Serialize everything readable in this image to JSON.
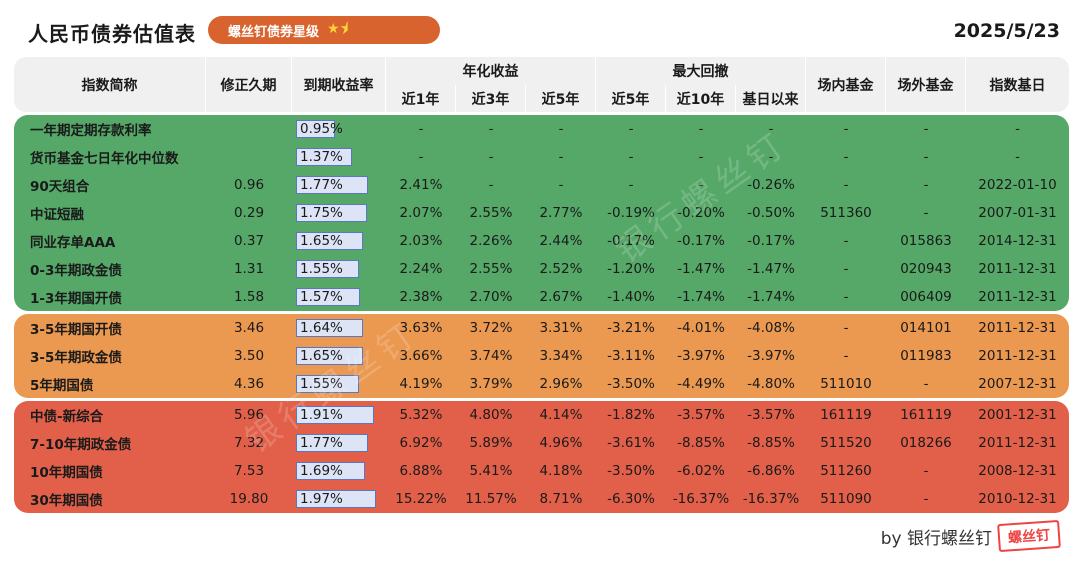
{
  "title": "人民币债券估值表",
  "badge": {
    "text": "螺丝钉债券星级",
    "stars": "★⯨"
  },
  "date": "2025/5/23",
  "headers": {
    "name": "指数简称",
    "duration": "修正久期",
    "ytm": "到期收益率",
    "annual_group": "年化收益",
    "annual": [
      "近1年",
      "近3年",
      "近5年"
    ],
    "drawdown_group": "最大回撤",
    "drawdown": [
      "近5年",
      "近10年",
      "基日以来"
    ],
    "onsite": "场内基金",
    "offsite": "场外基金",
    "base_date": "指数基日"
  },
  "ytm_scale_max": 1.97,
  "rows": [
    {
      "group": "green",
      "name": "一年期定期存款利率",
      "duration": "",
      "ytm": "0.95%",
      "ytm_value": 0.95,
      "y1": "-",
      "y3": "-",
      "y5": "-",
      "d5": "-",
      "d10": "-",
      "dall": "-",
      "onsite": "-",
      "offsite": "-",
      "base": "-"
    },
    {
      "group": "green",
      "name": "货币基金七日年化中位数",
      "duration": "",
      "ytm": "1.37%",
      "ytm_value": 1.37,
      "y1": "-",
      "y3": "-",
      "y5": "-",
      "d5": "-",
      "d10": "-",
      "dall": "-",
      "onsite": "-",
      "offsite": "-",
      "base": "-"
    },
    {
      "group": "green",
      "name": "90天组合",
      "duration": "0.96",
      "ytm": "1.77%",
      "ytm_value": 1.77,
      "y1": "2.41%",
      "y3": "-",
      "y5": "-",
      "d5": "-",
      "d10": "-",
      "dall": "-0.26%",
      "onsite": "-",
      "offsite": "-",
      "base": "2022-01-10"
    },
    {
      "group": "green",
      "name": "中证短融",
      "duration": "0.29",
      "ytm": "1.75%",
      "ytm_value": 1.75,
      "y1": "2.07%",
      "y3": "2.55%",
      "y5": "2.77%",
      "d5": "-0.19%",
      "d10": "-0.20%",
      "dall": "-0.50%",
      "onsite": "511360",
      "offsite": "-",
      "base": "2007-01-31"
    },
    {
      "group": "green",
      "name": "同业存单AAA",
      "duration": "0.37",
      "ytm": "1.65%",
      "ytm_value": 1.65,
      "y1": "2.03%",
      "y3": "2.26%",
      "y5": "2.44%",
      "d5": "-0.17%",
      "d10": "-0.17%",
      "dall": "-0.17%",
      "onsite": "-",
      "offsite": "015863",
      "base": "2014-12-31"
    },
    {
      "group": "green",
      "name": "0-3年期政金债",
      "duration": "1.31",
      "ytm": "1.55%",
      "ytm_value": 1.55,
      "y1": "2.24%",
      "y3": "2.55%",
      "y5": "2.52%",
      "d5": "-1.20%",
      "d10": "-1.47%",
      "dall": "-1.47%",
      "onsite": "-",
      "offsite": "020943",
      "base": "2011-12-31"
    },
    {
      "group": "green",
      "name": "1-3年期国开债",
      "duration": "1.58",
      "ytm": "1.57%",
      "ytm_value": 1.57,
      "y1": "2.38%",
      "y3": "2.70%",
      "y5": "2.67%",
      "d5": "-1.40%",
      "d10": "-1.74%",
      "dall": "-1.74%",
      "onsite": "-",
      "offsite": "006409",
      "base": "2011-12-31"
    },
    {
      "group": "orange",
      "name": "3-5年期国开债",
      "duration": "3.46",
      "ytm": "1.64%",
      "ytm_value": 1.64,
      "y1": "3.63%",
      "y3": "3.72%",
      "y5": "3.31%",
      "d5": "-3.21%",
      "d10": "-4.01%",
      "dall": "-4.08%",
      "onsite": "-",
      "offsite": "014101",
      "base": "2011-12-31"
    },
    {
      "group": "orange",
      "name": "3-5年期政金债",
      "duration": "3.50",
      "ytm": "1.65%",
      "ytm_value": 1.65,
      "y1": "3.66%",
      "y3": "3.74%",
      "y5": "3.34%",
      "d5": "-3.11%",
      "d10": "-3.97%",
      "dall": "-3.97%",
      "onsite": "-",
      "offsite": "011983",
      "base": "2011-12-31"
    },
    {
      "group": "orange",
      "name": "5年期国债",
      "duration": "4.36",
      "ytm": "1.55%",
      "ytm_value": 1.55,
      "y1": "4.19%",
      "y3": "3.79%",
      "y5": "2.96%",
      "d5": "-3.50%",
      "d10": "-4.49%",
      "dall": "-4.80%",
      "onsite": "511010",
      "offsite": "-",
      "base": "2007-12-31"
    },
    {
      "group": "red",
      "name": "中债-新综合",
      "duration": "5.96",
      "ytm": "1.91%",
      "ytm_value": 1.91,
      "y1": "5.32%",
      "y3": "4.80%",
      "y5": "4.14%",
      "d5": "-1.82%",
      "d10": "-3.57%",
      "dall": "-3.57%",
      "onsite": "161119",
      "offsite": "161119",
      "base": "2001-12-31"
    },
    {
      "group": "red",
      "name": "7-10年期政金债",
      "duration": "7.32",
      "ytm": "1.77%",
      "ytm_value": 1.77,
      "y1": "6.92%",
      "y3": "5.89%",
      "y5": "4.96%",
      "d5": "-3.61%",
      "d10": "-8.85%",
      "dall": "-8.85%",
      "onsite": "511520",
      "offsite": "018266",
      "base": "2011-12-31"
    },
    {
      "group": "red",
      "name": "10年期国债",
      "duration": "7.53",
      "ytm": "1.69%",
      "ytm_value": 1.69,
      "y1": "6.88%",
      "y3": "5.41%",
      "y5": "4.18%",
      "d5": "-3.50%",
      "d10": "-6.02%",
      "dall": "-6.86%",
      "onsite": "511260",
      "offsite": "-",
      "base": "2008-12-31"
    },
    {
      "group": "red",
      "name": "30年期国债",
      "duration": "19.80",
      "ytm": "1.97%",
      "ytm_value": 1.97,
      "y1": "15.22%",
      "y3": "11.57%",
      "y5": "8.71%",
      "d5": "-6.30%",
      "d10": "-16.37%",
      "dall": "-16.37%",
      "onsite": "511090",
      "offsite": "-",
      "base": "2010-12-31"
    }
  ],
  "footer": {
    "text": "by 银行螺丝钉",
    "logo": "螺丝钉"
  },
  "watermark": "银行螺丝钉",
  "colors": {
    "green": "#55a868",
    "orange": "#eb9850",
    "red": "#e2604a",
    "badge": "#d9632e",
    "bar_fill": "#dde4f5",
    "bar_border": "#5a77c4"
  }
}
